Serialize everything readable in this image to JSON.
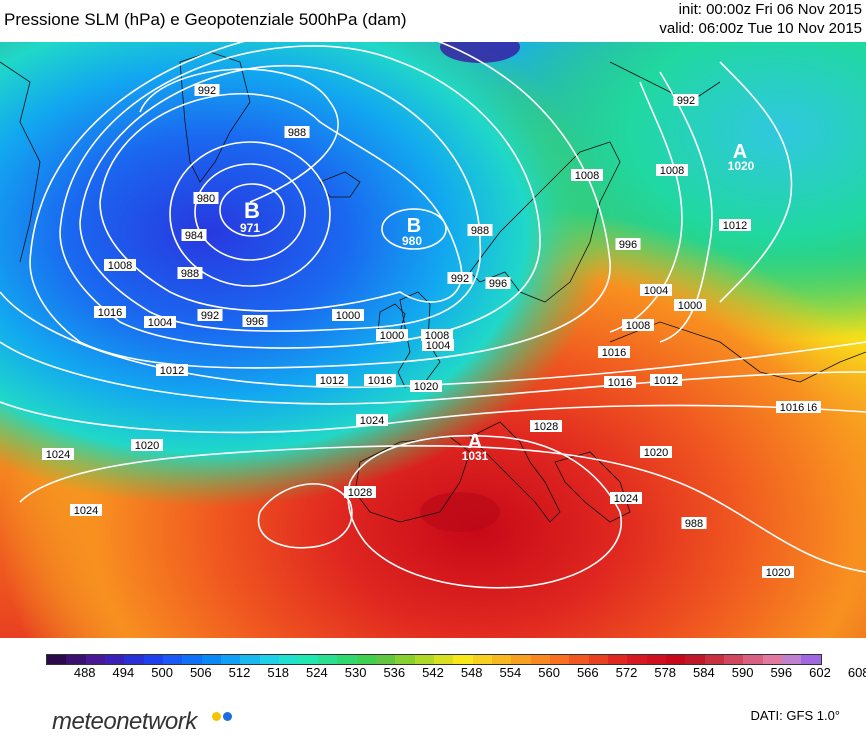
{
  "header": {
    "title": "Pressione SLM (hPa) e Geopotenziale 500hPa (dam)",
    "init": "init: 00:00z Fri 06 Nov 2015",
    "valid": "valid: 06:00z Tue 10 Nov 2015"
  },
  "pressure_centers": [
    {
      "letter": "B",
      "value": "971"
    },
    {
      "letter": "B",
      "value": "980"
    },
    {
      "letter": "A",
      "value": "1020"
    },
    {
      "letter": "A",
      "value": "1031"
    }
  ],
  "isobar_labels": [
    "992",
    "988",
    "980",
    "984",
    "988",
    "992",
    "996",
    "1000",
    "1008",
    "1016",
    "1004",
    "1012",
    "988",
    "992",
    "996",
    "1000",
    "1004",
    "1008",
    "1012",
    "1016",
    "1020",
    "1024",
    "1028",
    "1020",
    "1024",
    "1024",
    "1028",
    "1024",
    "1020",
    "1016",
    "1012",
    "1016",
    "1008",
    "1000",
    "1004",
    "996",
    "1012",
    "1008",
    "1016",
    "1008",
    "992",
    "988",
    "1020",
    "1016"
  ],
  "colorbar": {
    "tick_labels": [
      "488",
      "494",
      "500",
      "506",
      "512",
      "518",
      "524",
      "530",
      "536",
      "542",
      "548",
      "554",
      "560",
      "566",
      "572",
      "578",
      "584",
      "590",
      "596",
      "602",
      "608"
    ],
    "colors": [
      "#2a0a4a",
      "#3a1070",
      "#4a1896",
      "#3a20b8",
      "#2a30d8",
      "#2040f0",
      "#1a58f8",
      "#1070f8",
      "#0a88f8",
      "#10a0f8",
      "#18b8f0",
      "#20d0e8",
      "#20e0d0",
      "#20e8b0",
      "#28e090",
      "#30d870",
      "#40d050",
      "#60c840",
      "#88d030",
      "#b0d828",
      "#d8e020",
      "#f8e818",
      "#f8d020",
      "#f8b820",
      "#f8a020",
      "#f88820",
      "#f87020",
      "#f05820",
      "#e84020",
      "#e02820",
      "#d81820",
      "#d01020",
      "#c80818",
      "#c01828",
      "#c83040",
      "#d04860",
      "#d86080",
      "#e078a0",
      "#c080d0",
      "#a068e0"
    ]
  },
  "logo": {
    "text": "meteonetwork",
    "dot_colors": [
      "#f5c400",
      "#1a6ee0"
    ]
  },
  "credit": "DATI: GFS 1.0°"
}
